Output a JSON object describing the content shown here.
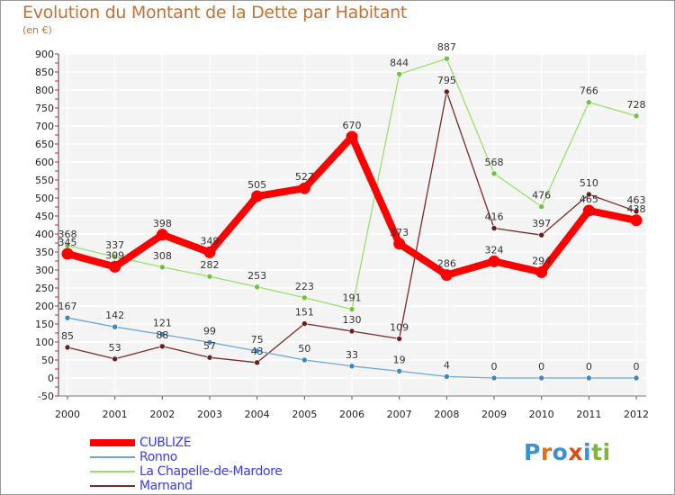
{
  "title": "Evolution du Montant de la Dette par Habitant",
  "subtitle": "(en €)",
  "logo": {
    "text": "Proxiti",
    "letters": [
      "P",
      "r",
      "o",
      "x",
      "i",
      "t",
      "i"
    ],
    "colors": [
      "#3a8fd8",
      "#e0701f",
      "#3a8fd8",
      "#e04a1f",
      "#3a8fd8",
      "#7ab83a",
      "#7ab83a"
    ]
  },
  "chart_data": {
    "type": "line",
    "x": [
      "2000",
      "2001",
      "2002",
      "2003",
      "2004",
      "2005",
      "2006",
      "2007",
      "2008",
      "2009",
      "2010",
      "2011",
      "2012"
    ],
    "ylim": [
      -50,
      900
    ],
    "yticks": [
      -50,
      0,
      50,
      100,
      150,
      200,
      250,
      300,
      350,
      400,
      450,
      500,
      550,
      600,
      650,
      700,
      750,
      800,
      850,
      900
    ],
    "grid": true,
    "legend_position": "bottom-left",
    "series": [
      {
        "name": "La Chapelle-de-Mardore",
        "color": "#99e06a",
        "marker": "#6ec43f",
        "values": [
          368,
          337,
          308,
          282,
          253,
          223,
          191,
          844,
          887,
          568,
          476,
          766,
          728
        ]
      },
      {
        "name": "Marnand",
        "color": "#7a2a2a",
        "marker": "#6a1e1e",
        "values": [
          85,
          53,
          88,
          57,
          43,
          151,
          130,
          109,
          795,
          416,
          397,
          510,
          463
        ]
      },
      {
        "name": "Ronno",
        "color": "#6ea6d6",
        "marker": "#3a86c8",
        "values": [
          167,
          142,
          121,
          99,
          75,
          50,
          33,
          19,
          4,
          0,
          0,
          0,
          0
        ]
      },
      {
        "name": "CUBLIZE",
        "color": "#ff0000",
        "marker": "#ff0000",
        "values": [
          345,
          309,
          398,
          349,
          505,
          527,
          670,
          373,
          286,
          324,
          294,
          465,
          438
        ]
      }
    ],
    "legend_order": [
      "CUBLIZE",
      "Ronno",
      "La Chapelle-de-Mardore",
      "Marnand"
    ]
  }
}
